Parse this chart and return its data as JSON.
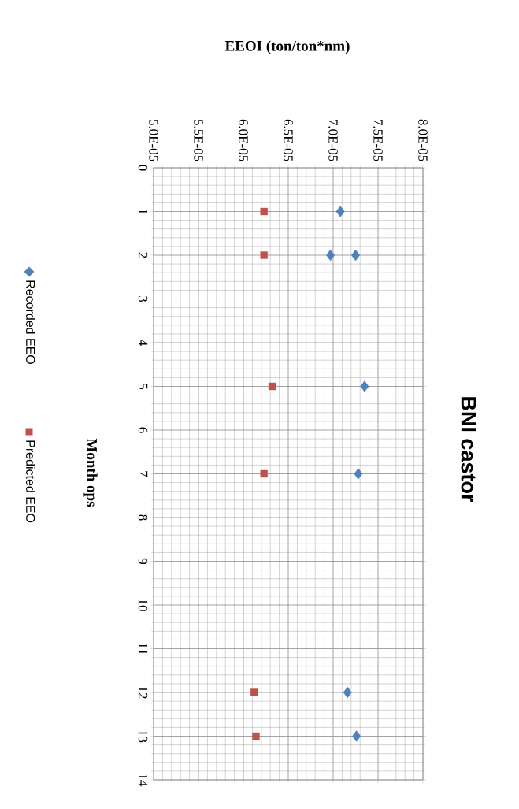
{
  "chart_data": {
    "type": "scatter",
    "title": "BNI castor",
    "xlabel": "EEOI (ton/ton*nm)",
    "ylabel": "Month ops",
    "xlim": [
      5e-05,
      8e-05
    ],
    "xticks": [
      {
        "value": 5e-05,
        "label": "5.0E-05"
      },
      {
        "value": 5.5e-05,
        "label": "5.5E-05"
      },
      {
        "value": 6e-05,
        "label": "6.0E-05"
      },
      {
        "value": 6.5e-05,
        "label": "6.5E-05"
      },
      {
        "value": 7e-05,
        "label": "7.0E-05"
      },
      {
        "value": 7.5e-05,
        "label": "7.5E-05"
      },
      {
        "value": 8e-05,
        "label": "8.0E-05"
      }
    ],
    "ylim": [
      14,
      0
    ],
    "yticks": [
      0,
      1,
      2,
      3,
      4,
      5,
      6,
      7,
      8,
      9,
      10,
      11,
      12,
      13,
      14
    ],
    "grid": true,
    "legend": "left",
    "series": [
      {
        "name": "Recorded EEO",
        "color": "#4f81bd",
        "marker": "diamond",
        "x": [
          7.08e-05,
          6.97e-05,
          7.25e-05,
          7.35e-05,
          7.28e-05,
          7.16e-05,
          7.26e-05
        ],
        "values": [
          1,
          2,
          2,
          5,
          7,
          12,
          13
        ]
      },
      {
        "name": "Predicted EEO",
        "color": "#c0504d",
        "marker": "square",
        "x": [
          6.23e-05,
          6.23e-05,
          6.32e-05,
          6.23e-05,
          6.12e-05,
          6.14e-05
        ],
        "values": [
          1,
          2,
          5,
          7,
          12,
          13
        ]
      }
    ]
  }
}
